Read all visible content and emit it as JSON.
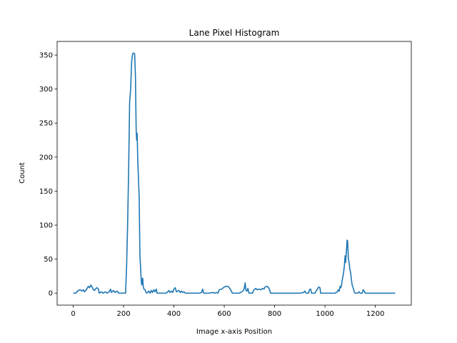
{
  "chart_data": {
    "type": "line",
    "title": "Lane Pixel Histogram",
    "xlabel": "Image x-axis Position",
    "ylabel": "Count",
    "xlim": [
      -64,
      1343
    ],
    "ylim": [
      -17.6,
      370
    ],
    "x_ticks": [
      0,
      200,
      400,
      600,
      800,
      1000,
      1200
    ],
    "y_ticks": [
      0,
      50,
      100,
      150,
      200,
      250,
      300,
      350
    ],
    "grid": false,
    "legend": "none",
    "series": [
      {
        "color": "#1f77b4",
        "points": [
          [
            0,
            0
          ],
          [
            10,
            0
          ],
          [
            15,
            2
          ],
          [
            20,
            4
          ],
          [
            28,
            5
          ],
          [
            35,
            3
          ],
          [
            40,
            5
          ],
          [
            45,
            2
          ],
          [
            50,
            4
          ],
          [
            55,
            7
          ],
          [
            60,
            10
          ],
          [
            65,
            8
          ],
          [
            70,
            12
          ],
          [
            75,
            9
          ],
          [
            80,
            5
          ],
          [
            85,
            4
          ],
          [
            90,
            7
          ],
          [
            95,
            8
          ],
          [
            100,
            6
          ],
          [
            103,
            0
          ],
          [
            112,
            2
          ],
          [
            118,
            0
          ],
          [
            128,
            2
          ],
          [
            135,
            0
          ],
          [
            145,
            3
          ],
          [
            148,
            6
          ],
          [
            152,
            1
          ],
          [
            160,
            4
          ],
          [
            165,
            1
          ],
          [
            175,
            3
          ],
          [
            180,
            0
          ],
          [
            195,
            0
          ],
          [
            208,
            0
          ],
          [
            212,
            40
          ],
          [
            216,
            100
          ],
          [
            220,
            180
          ],
          [
            224,
            280
          ],
          [
            228,
            300
          ],
          [
            232,
            340
          ],
          [
            236,
            352
          ],
          [
            240,
            353
          ],
          [
            244,
            352
          ],
          [
            247,
            320
          ],
          [
            250,
            240
          ],
          [
            252,
            225
          ],
          [
            254,
            235
          ],
          [
            256,
            200
          ],
          [
            259,
            170
          ],
          [
            262,
            140
          ],
          [
            265,
            55
          ],
          [
            268,
            35
          ],
          [
            270,
            20
          ],
          [
            272,
            12
          ],
          [
            274,
            20
          ],
          [
            276,
            22
          ],
          [
            278,
            10
          ],
          [
            281,
            6
          ],
          [
            285,
            5
          ],
          [
            288,
            2
          ],
          [
            292,
            0
          ],
          [
            300,
            3
          ],
          [
            305,
            0
          ],
          [
            310,
            4
          ],
          [
            315,
            1
          ],
          [
            320,
            5
          ],
          [
            325,
            2
          ],
          [
            330,
            6
          ],
          [
            333,
            0
          ],
          [
            350,
            0
          ],
          [
            370,
            0
          ],
          [
            380,
            4
          ],
          [
            384,
            1
          ],
          [
            390,
            3
          ],
          [
            395,
            1
          ],
          [
            400,
            6
          ],
          [
            405,
            8
          ],
          [
            410,
            2
          ],
          [
            420,
            4
          ],
          [
            425,
            1
          ],
          [
            430,
            3
          ],
          [
            435,
            1
          ],
          [
            440,
            2
          ],
          [
            445,
            0
          ],
          [
            500,
            0
          ],
          [
            510,
            1
          ],
          [
            514,
            6
          ],
          [
            518,
            0
          ],
          [
            540,
            0
          ],
          [
            555,
            1
          ],
          [
            560,
            0
          ],
          [
            570,
            1
          ],
          [
            575,
            0
          ],
          [
            580,
            5
          ],
          [
            590,
            6
          ],
          [
            600,
            9
          ],
          [
            606,
            10
          ],
          [
            612,
            10
          ],
          [
            618,
            9
          ],
          [
            622,
            7
          ],
          [
            628,
            3
          ],
          [
            632,
            0
          ],
          [
            660,
            0
          ],
          [
            670,
            2
          ],
          [
            676,
            4
          ],
          [
            680,
            8
          ],
          [
            683,
            15
          ],
          [
            686,
            4
          ],
          [
            690,
            3
          ],
          [
            694,
            7
          ],
          [
            698,
            0
          ],
          [
            712,
            0
          ],
          [
            718,
            5
          ],
          [
            725,
            7
          ],
          [
            730,
            5
          ],
          [
            738,
            6
          ],
          [
            745,
            5
          ],
          [
            752,
            7
          ],
          [
            758,
            6
          ],
          [
            762,
            9
          ],
          [
            770,
            10
          ],
          [
            776,
            8
          ],
          [
            780,
            5
          ],
          [
            784,
            0
          ],
          [
            900,
            0
          ],
          [
            915,
            1
          ],
          [
            920,
            3
          ],
          [
            925,
            0
          ],
          [
            935,
            0
          ],
          [
            938,
            5
          ],
          [
            943,
            6
          ],
          [
            947,
            0
          ],
          [
            960,
            0
          ],
          [
            970,
            6
          ],
          [
            975,
            9
          ],
          [
            980,
            8
          ],
          [
            983,
            0
          ],
          [
            1000,
            0
          ],
          [
            1040,
            0
          ],
          [
            1050,
            2
          ],
          [
            1053,
            5
          ],
          [
            1057,
            3
          ],
          [
            1060,
            10
          ],
          [
            1063,
            8
          ],
          [
            1066,
            12
          ],
          [
            1068,
            18
          ],
          [
            1071,
            24
          ],
          [
            1074,
            30
          ],
          [
            1077,
            40
          ],
          [
            1080,
            55
          ],
          [
            1082,
            45
          ],
          [
            1085,
            60
          ],
          [
            1088,
            78
          ],
          [
            1090,
            77
          ],
          [
            1093,
            50
          ],
          [
            1096,
            45
          ],
          [
            1099,
            35
          ],
          [
            1102,
            30
          ],
          [
            1105,
            20
          ],
          [
            1108,
            12
          ],
          [
            1112,
            8
          ],
          [
            1116,
            2
          ],
          [
            1120,
            0
          ],
          [
            1130,
            0
          ],
          [
            1135,
            2
          ],
          [
            1140,
            0
          ],
          [
            1148,
            0
          ],
          [
            1152,
            5
          ],
          [
            1156,
            3
          ],
          [
            1160,
            0
          ],
          [
            1279,
            0
          ]
        ]
      }
    ]
  }
}
